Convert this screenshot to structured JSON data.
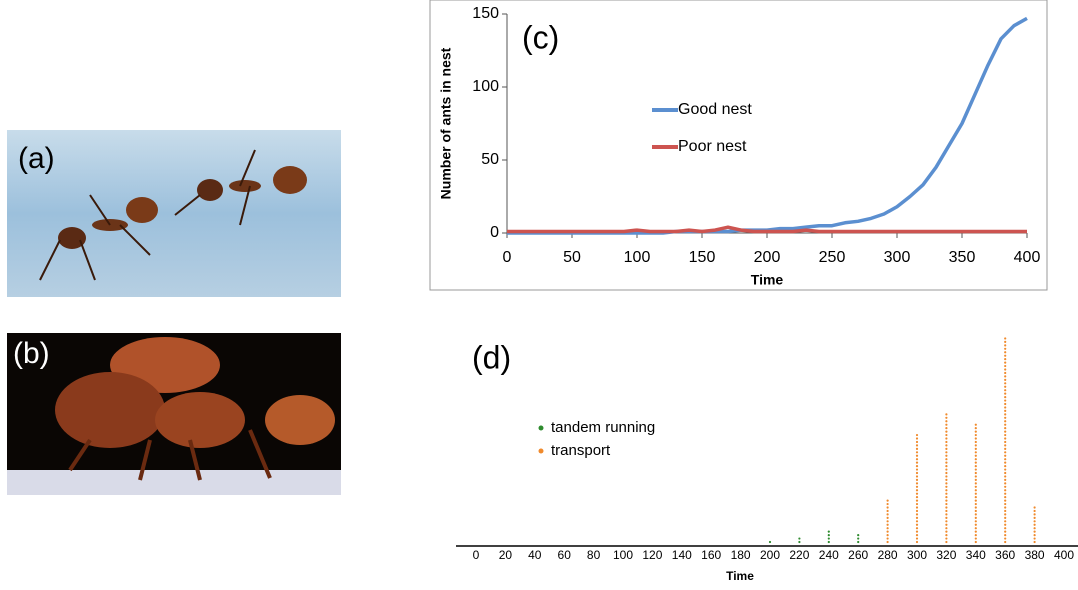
{
  "panels": [
    {
      "label": "(a)"
    },
    {
      "label": "(b)"
    }
  ],
  "chart_data": [
    {
      "type": "line",
      "annotation": "(c)",
      "xlabel": "Time",
      "ylabel": "Number of ants in nest",
      "x": [
        0,
        10,
        20,
        30,
        40,
        50,
        60,
        70,
        80,
        90,
        100,
        110,
        120,
        130,
        140,
        150,
        160,
        170,
        180,
        190,
        200,
        210,
        220,
        230,
        240,
        250,
        260,
        270,
        280,
        290,
        300,
        310,
        320,
        330,
        340,
        350,
        360,
        370,
        380,
        390,
        400
      ],
      "series": [
        {
          "name": "Good nest",
          "color": "#5b8fd0",
          "values": [
            0,
            0,
            0,
            0,
            0,
            0,
            0,
            0,
            0,
            0,
            0,
            0,
            0,
            1,
            1,
            1,
            1,
            1,
            2,
            2,
            2,
            3,
            3,
            4,
            5,
            5,
            7,
            8,
            10,
            13,
            18,
            25,
            33,
            45,
            60,
            75,
            95,
            115,
            133,
            142,
            147
          ]
        },
        {
          "name": "Poor nest",
          "color": "#cd5450",
          "values": [
            1,
            1,
            1,
            1,
            1,
            1,
            1,
            1,
            1,
            1,
            2,
            1,
            1,
            1,
            2,
            1,
            2,
            4,
            2,
            1,
            1,
            1,
            1,
            2,
            1,
            1,
            1,
            1,
            1,
            1,
            1,
            1,
            1,
            1,
            1,
            1,
            1,
            1,
            1,
            1,
            1
          ]
        }
      ],
      "xlim": [
        0,
        400
      ],
      "xticks": [
        0,
        50,
        100,
        150,
        200,
        250,
        300,
        350,
        400
      ],
      "ylim": [
        0,
        150
      ],
      "yticks": [
        0,
        50,
        100,
        150
      ]
    },
    {
      "type": "dot",
      "annotation": "(d)",
      "xlabel": "Time",
      "categories": [
        0,
        20,
        40,
        60,
        80,
        100,
        120,
        140,
        160,
        180,
        200,
        220,
        240,
        260,
        280,
        300,
        320,
        340,
        360,
        380,
        400
      ],
      "series": [
        {
          "name": "tandem running",
          "color": "#2e8b2e",
          "values": [
            0,
            0,
            0,
            0,
            0,
            0,
            0,
            0,
            0,
            0,
            1,
            2,
            4,
            3,
            0,
            0,
            0,
            0,
            0,
            0,
            0
          ]
        },
        {
          "name": "transport",
          "color": "#f08a2c",
          "values": [
            0,
            0,
            0,
            0,
            0,
            0,
            0,
            0,
            0,
            0,
            0,
            0,
            0,
            0,
            13,
            32,
            38,
            35,
            60,
            11,
            0
          ]
        }
      ]
    }
  ]
}
